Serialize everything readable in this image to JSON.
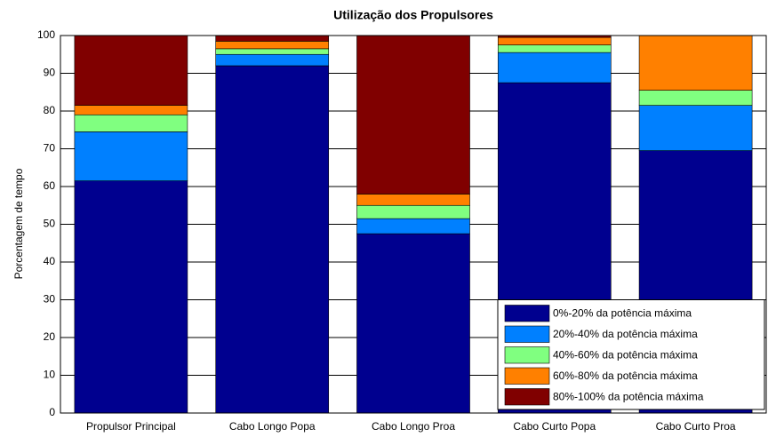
{
  "chart_data": {
    "type": "stacked_bar",
    "title": "Utilização dos Propulsores",
    "ylabel": "Porcentagem de tempo",
    "categories": [
      "Propulsor Principal",
      "Cabo Longo Popa",
      "Cabo Longo Proa",
      "Cabo Curto Popa",
      "Cabo Curto Proa"
    ],
    "series": [
      {
        "name": "0%-20% da potência máxima",
        "color": "#00008f",
        "values": [
          61.5,
          92,
          47.5,
          87.5,
          69.5
        ]
      },
      {
        "name": "20%-40% da potência máxima",
        "color": "#0080ff",
        "values": [
          13,
          3,
          4,
          8,
          12
        ]
      },
      {
        "name": "40%-60% da potência máxima",
        "color": "#80ff80",
        "values": [
          4.5,
          1.5,
          3.5,
          2,
          4
        ]
      },
      {
        "name": "60%-80% da potência máxima",
        "color": "#ff8000",
        "values": [
          2.5,
          2,
          3,
          2,
          14.5
        ]
      },
      {
        "name": "80%-100% da potência máxima",
        "color": "#800000",
        "values": [
          18.5,
          1.5,
          42,
          0.5,
          0
        ]
      }
    ],
    "ylim": [
      0,
      100
    ],
    "yticks": [
      0,
      10,
      20,
      30,
      40,
      50,
      60,
      70,
      80,
      90,
      100
    ],
    "grid": true,
    "legend": "lower right"
  }
}
